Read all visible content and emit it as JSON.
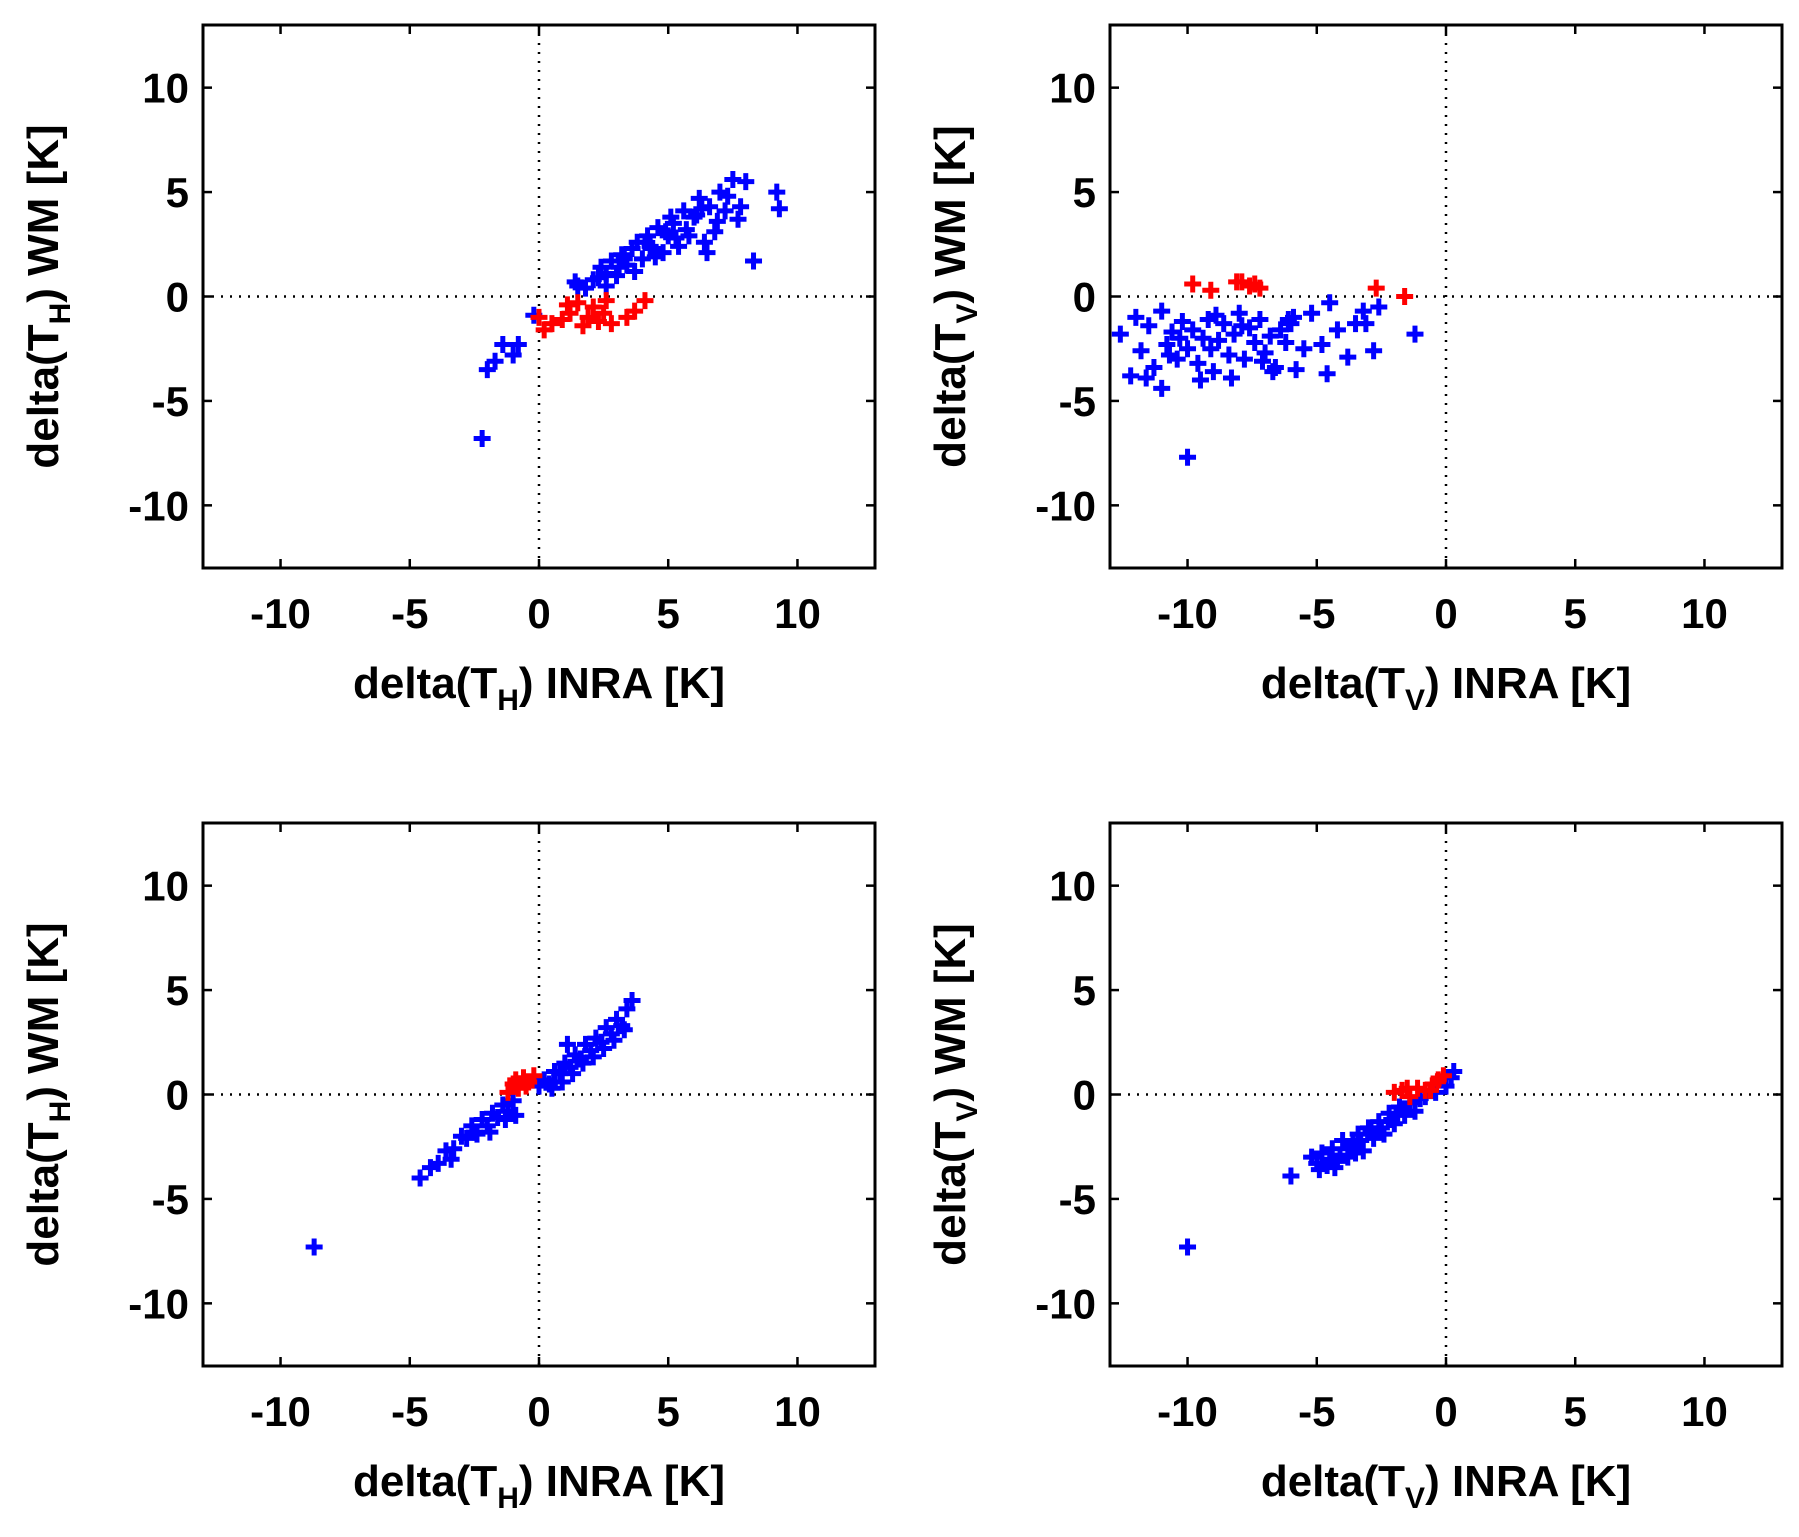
{
  "chart_data": [
    {
      "type": "scatter",
      "panel": "top-left",
      "xlabel": {
        "prefix": "delta(T",
        "sub": "H",
        "suffix": ") INRA [K]"
      },
      "ylabel": {
        "prefix": "delta(T",
        "sub": "H",
        "suffix": ") WM [K]"
      },
      "xlim": [
        -13,
        13
      ],
      "ylim": [
        -13,
        13
      ],
      "xticks": [
        -10,
        -5,
        0,
        5,
        10
      ],
      "yticks": [
        -10,
        -5,
        0,
        5,
        10
      ],
      "xtick_labels": [
        "-10",
        "-5",
        "0",
        "5",
        "10"
      ],
      "ytick_labels": [
        "-10",
        "-5",
        "0",
        "5",
        "10"
      ],
      "zero_lines": true,
      "series": [
        {
          "name": "blue",
          "color": "#0000ff",
          "x": [
            -2.2,
            -2,
            -1.7,
            -1.4,
            -1,
            -0.8,
            -0.2,
            1.5,
            1.8,
            2.1,
            2.4,
            2.6,
            2.8,
            3,
            3.2,
            3.4,
            3.6,
            3.8,
            4,
            4.2,
            4.4,
            4.6,
            4.8,
            5,
            5.2,
            5.4,
            5.6,
            5.8,
            6,
            6.2,
            6.4,
            6.6,
            6.8,
            7,
            7.2,
            7.5,
            7.8,
            8,
            8.3,
            9.2,
            9.3,
            1.4,
            2.6,
            3.1,
            3.7,
            4.1,
            4.5,
            4.9,
            5.3,
            5.7,
            6.1,
            6.5,
            6.9,
            7.3,
            7.7,
            3.3,
            4.3,
            5.1,
            6.3,
            2.3
          ],
          "y": [
            -6.8,
            -3.5,
            -3.1,
            -2.3,
            -2.8,
            -2.3,
            -0.9,
            0.5,
            0.4,
            0.8,
            1.4,
            1.1,
            1.7,
            1,
            2,
            1.5,
            2.3,
            2.6,
            1.8,
            2.9,
            2.3,
            3.3,
            2.1,
            2.9,
            3.5,
            2.4,
            4.1,
            2.9,
            3.8,
            4.7,
            2.6,
            4.3,
            3.1,
            5,
            4.1,
            5.6,
            4.3,
            5.5,
            1.7,
            5,
            4.2,
            0.7,
            0.5,
            1.4,
            1.2,
            2.6,
            1.9,
            3.1,
            2.8,
            3.2,
            3.9,
            2.1,
            3.6,
            4.8,
            3.7,
            1.8,
            2.4,
            3.8,
            4.2,
            0.9
          ]
        },
        {
          "name": "red",
          "color": "#ff0000",
          "x": [
            0,
            0.2,
            0.9,
            1.2,
            1.5,
            1.7,
            1.9,
            2.1,
            2.3,
            2.5,
            2.8,
            3.4,
            3.7,
            4.1,
            0.5,
            1.1,
            2.6
          ],
          "y": [
            -1,
            -1.6,
            -1.1,
            -0.8,
            -0.3,
            -1.4,
            -1,
            -0.5,
            -1.2,
            -0.8,
            -1.3,
            -1,
            -0.7,
            -0.2,
            -1.3,
            -0.4,
            -0.2
          ]
        }
      ]
    },
    {
      "type": "scatter",
      "panel": "top-right",
      "xlabel": {
        "prefix": "delta(T",
        "sub": "V",
        "suffix": ") INRA [K]"
      },
      "ylabel": {
        "prefix": "delta(T",
        "sub": "V",
        "suffix": ") WM [K]"
      },
      "xlim": [
        -13,
        13
      ],
      "ylim": [
        -13,
        13
      ],
      "xticks": [
        -10,
        -5,
        0,
        5,
        10
      ],
      "yticks": [
        -10,
        -5,
        0,
        5,
        10
      ],
      "xtick_labels": [
        "-10",
        "-5",
        "0",
        "5",
        "10"
      ],
      "ytick_labels": [
        "-10",
        "-5",
        "0",
        "5",
        "10"
      ],
      "zero_lines": true,
      "series": [
        {
          "name": "blue",
          "color": "#0000ff",
          "x": [
            -12.6,
            -12.2,
            -12,
            -11.8,
            -11.5,
            -11.3,
            -11,
            -10.8,
            -10.6,
            -10.4,
            -10.2,
            -10,
            -9.8,
            -9.6,
            -9.4,
            -9.2,
            -9,
            -8.8,
            -8.6,
            -8.4,
            -8.2,
            -8,
            -7.8,
            -7.6,
            -7.4,
            -7.2,
            -7,
            -6.8,
            -6.6,
            -6.4,
            -6.2,
            -6,
            -5.8,
            -5.5,
            -5.2,
            -4.8,
            -4.5,
            -4.2,
            -3.8,
            -3.5,
            -3.2,
            -2.8,
            -2.6,
            -1.2,
            -10,
            -11,
            -9.5,
            -8.3,
            -7.1,
            -11.6,
            -10.7,
            -9.1,
            -7.9,
            -6.7,
            -8.9,
            -6.1,
            -4.6,
            -3.1,
            -5.9,
            -10.3
          ],
          "y": [
            -1.8,
            -3.8,
            -1,
            -2.6,
            -1.4,
            -3.4,
            -0.7,
            -2.3,
            -1.7,
            -3,
            -1.2,
            -2.5,
            -1.6,
            -3.2,
            -2,
            -1.1,
            -3.6,
            -2.1,
            -1.3,
            -2.8,
            -1.8,
            -0.8,
            -3,
            -1.5,
            -2.2,
            -1.1,
            -2.7,
            -1.9,
            -3.4,
            -1.6,
            -2.2,
            -1.3,
            -3.5,
            -2.5,
            -0.8,
            -2.3,
            -0.3,
            -1.6,
            -2.9,
            -1.3,
            -0.7,
            -2.6,
            -0.5,
            -1.8,
            -7.7,
            -4.4,
            -4,
            -3.9,
            -3.1,
            -3.9,
            -2.8,
            -2.5,
            -1.4,
            -3.6,
            -0.9,
            -1.1,
            -3.7,
            -1.3,
            -1,
            -2
          ]
        },
        {
          "name": "red",
          "color": "#ff0000",
          "x": [
            -9.8,
            -9.1,
            -7.9,
            -7.6,
            -7.4,
            -7.2,
            -2.7,
            -1.6,
            -8.1
          ],
          "y": [
            0.6,
            0.3,
            0.7,
            0.5,
            0.6,
            0.4,
            0.4,
            0,
            0.7
          ]
        }
      ]
    },
    {
      "type": "scatter",
      "panel": "bottom-left",
      "xlabel": {
        "prefix": "delta(T",
        "sub": "H",
        "suffix": ") INRA [K]"
      },
      "ylabel": {
        "prefix": "delta(T",
        "sub": "H",
        "suffix": ") WM [K]"
      },
      "xlim": [
        -13,
        13
      ],
      "ylim": [
        -13,
        13
      ],
      "xticks": [
        -10,
        -5,
        0,
        5,
        10
      ],
      "yticks": [
        -10,
        -5,
        0,
        5,
        10
      ],
      "xtick_labels": [
        "-10",
        "-5",
        "0",
        "5",
        "10"
      ],
      "ytick_labels": [
        "-10",
        "-5",
        "0",
        "5",
        "10"
      ],
      "zero_lines": true,
      "series": [
        {
          "name": "blue",
          "color": "#0000ff",
          "x": [
            -8.7,
            -4.6,
            -4.2,
            -3.9,
            -3.6,
            -3.3,
            -3,
            -2.8,
            -2.6,
            -2.4,
            -2.2,
            -2,
            -1.8,
            -1.6,
            -1.4,
            -1.2,
            -1,
            0,
            0.2,
            0.4,
            0.6,
            0.8,
            1,
            1.2,
            1.4,
            1.6,
            1.8,
            2,
            2.2,
            2.4,
            2.6,
            2.8,
            3,
            3.2,
            3.4,
            3.6,
            -3.4,
            -2.5,
            -1.9,
            -1.3,
            0.5,
            0.9,
            1.3,
            1.7,
            2.1,
            2.5,
            2.9,
            3.3,
            -0.9,
            1.1
          ],
          "y": [
            -7.3,
            -4,
            -3.5,
            -3.3,
            -2.7,
            -2.6,
            -2,
            -2.1,
            -1.5,
            -1.9,
            -1.2,
            -1.5,
            -0.9,
            -1.1,
            -0.5,
            -0.8,
            -0.3,
            0.4,
            0.7,
            0.5,
            1.1,
            1,
            1.5,
            1.3,
            1.9,
            1.7,
            2.4,
            2.1,
            2.7,
            2.5,
            3.2,
            2.9,
            3.6,
            3.3,
            4.1,
            4.5,
            -3.1,
            -1.8,
            -1.8,
            -1.2,
            0.3,
            0.6,
            1,
            1.5,
            1.8,
            2.2,
            2.6,
            3.1,
            -1,
            2.4
          ]
        },
        {
          "name": "red",
          "color": "#ff0000",
          "x": [
            -1.2,
            -1,
            -0.8,
            -0.6,
            -0.4,
            -0.2,
            -0.9,
            -0.5
          ],
          "y": [
            0.1,
            0.5,
            0.3,
            0.8,
            0.6,
            0.9,
            0.7,
            0.4
          ]
        }
      ]
    },
    {
      "type": "scatter",
      "panel": "bottom-right",
      "xlabel": {
        "prefix": "delta(T",
        "sub": "V",
        "suffix": ") INRA [K]"
      },
      "ylabel": {
        "prefix": "delta(T",
        "sub": "V",
        "suffix": ") WM [K]"
      },
      "xlim": [
        -13,
        13
      ],
      "ylim": [
        -13,
        13
      ],
      "xticks": [
        -10,
        -5,
        0,
        5,
        10
      ],
      "yticks": [
        -10,
        -5,
        0,
        5,
        10
      ],
      "xtick_labels": [
        "-10",
        "-5",
        "0",
        "5",
        "10"
      ],
      "ytick_labels": [
        "-10",
        "-5",
        "0",
        "5",
        "10"
      ],
      "zero_lines": true,
      "series": [
        {
          "name": "blue",
          "color": "#0000ff",
          "x": [
            -10,
            -6,
            -5.2,
            -5,
            -4.8,
            -4.6,
            -4.4,
            -4.2,
            -4,
            -3.8,
            -3.6,
            -3.4,
            -3.2,
            -3,
            -2.8,
            -2.6,
            -2.4,
            -2.2,
            -2,
            -1.8,
            -1.6,
            -1.4,
            -1.2,
            -1,
            -0.8,
            -0.4,
            0,
            0.2,
            0.3,
            -4.9,
            -4.5,
            -4.1,
            -3.7,
            -3.3,
            -2.9,
            -2.5,
            -2.1,
            -1.7,
            -4.3,
            -3.5
          ],
          "y": [
            -7.3,
            -3.9,
            -3,
            -3.3,
            -2.8,
            -3.4,
            -2.6,
            -3.2,
            -2.2,
            -3,
            -2.4,
            -1.9,
            -2.7,
            -1.6,
            -2.1,
            -1.3,
            -1.9,
            -0.9,
            -1.4,
            -0.6,
            -1,
            -0.4,
            -0.8,
            -0.2,
            -0.1,
            0.1,
            0.4,
            0.8,
            1.1,
            -3.6,
            -3.1,
            -2.9,
            -2.6,
            -2.2,
            -1.8,
            -1.6,
            -1.2,
            -0.7,
            -3.5,
            -2.8
          ]
        },
        {
          "name": "red",
          "color": "#ff0000",
          "x": [
            -2,
            -1.7,
            -1.4,
            -1.1,
            -0.8,
            -0.5,
            -0.3,
            -0.1,
            -1.5,
            -0.6
          ],
          "y": [
            0.1,
            0.2,
            -0.1,
            0.3,
            0.2,
            0.5,
            0.7,
            0.9,
            0.3,
            0.2
          ]
        }
      ]
    }
  ]
}
